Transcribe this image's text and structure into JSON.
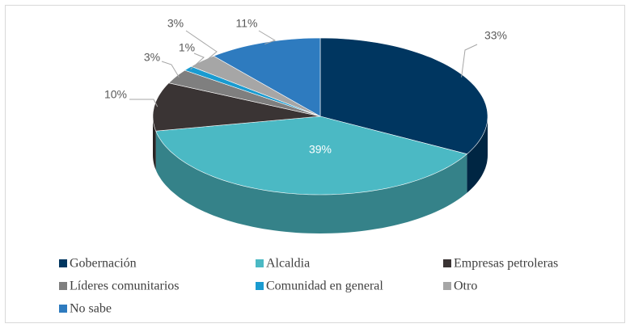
{
  "chart_data": {
    "type": "pie",
    "categories": [
      "Gobernación",
      "Alcaldia",
      "Empresas petroleras",
      "Líderes comunitarios",
      "Comunidad en general",
      "Otro",
      "No sabe"
    ],
    "values": [
      33,
      39,
      10,
      3,
      1,
      3,
      11
    ],
    "value_labels": [
      "33%",
      "39%",
      "10%",
      "3%",
      "1%",
      "3%",
      "11%"
    ],
    "colors": [
      "#003660",
      "#4bb9c4",
      "#3a3434",
      "#7f7f7f",
      "#1a9bd0",
      "#a6a6a6",
      "#2e7bbf"
    ],
    "legend": "bottom"
  }
}
